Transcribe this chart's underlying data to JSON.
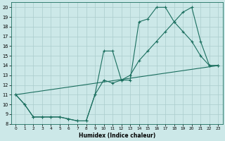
{
  "xlabel": "Humidex (Indice chaleur)",
  "bg_color": "#cce8e8",
  "grid_color": "#aacccc",
  "line_color": "#1a6e5e",
  "xlim": [
    -0.5,
    23.5
  ],
  "ylim": [
    8,
    20.5
  ],
  "xticks": [
    0,
    1,
    2,
    3,
    4,
    5,
    6,
    7,
    8,
    9,
    10,
    11,
    12,
    13,
    14,
    15,
    16,
    17,
    18,
    19,
    20,
    21,
    22,
    23
  ],
  "yticks": [
    8,
    9,
    10,
    11,
    12,
    13,
    14,
    15,
    16,
    17,
    18,
    19,
    20
  ],
  "line1_x": [
    0,
    1,
    2,
    3,
    4,
    5,
    6,
    7,
    8,
    9,
    10,
    11,
    12,
    13,
    14,
    15,
    16,
    17,
    18,
    19,
    20,
    21,
    22,
    23
  ],
  "line1_y": [
    11.0,
    10.0,
    8.7,
    8.7,
    8.7,
    8.7,
    8.5,
    8.3,
    8.3,
    11.0,
    15.5,
    15.5,
    12.5,
    12.5,
    18.5,
    18.8,
    20.0,
    20.0,
    18.5,
    17.5,
    16.5,
    15.0,
    14.0,
    14.0
  ],
  "line2_x": [
    0,
    1,
    2,
    3,
    4,
    5,
    6,
    7,
    8,
    9,
    10,
    11,
    12,
    13,
    14,
    15,
    16,
    17,
    18,
    19,
    20,
    21,
    22,
    23
  ],
  "line2_y": [
    11.0,
    10.0,
    8.7,
    8.7,
    8.7,
    8.7,
    8.5,
    8.3,
    8.3,
    11.0,
    12.5,
    12.2,
    12.5,
    13.0,
    14.5,
    15.5,
    16.5,
    17.5,
    18.5,
    19.5,
    20.0,
    16.5,
    14.0,
    14.0
  ],
  "line3_x": [
    0,
    23
  ],
  "line3_y": [
    11.0,
    14.0
  ]
}
